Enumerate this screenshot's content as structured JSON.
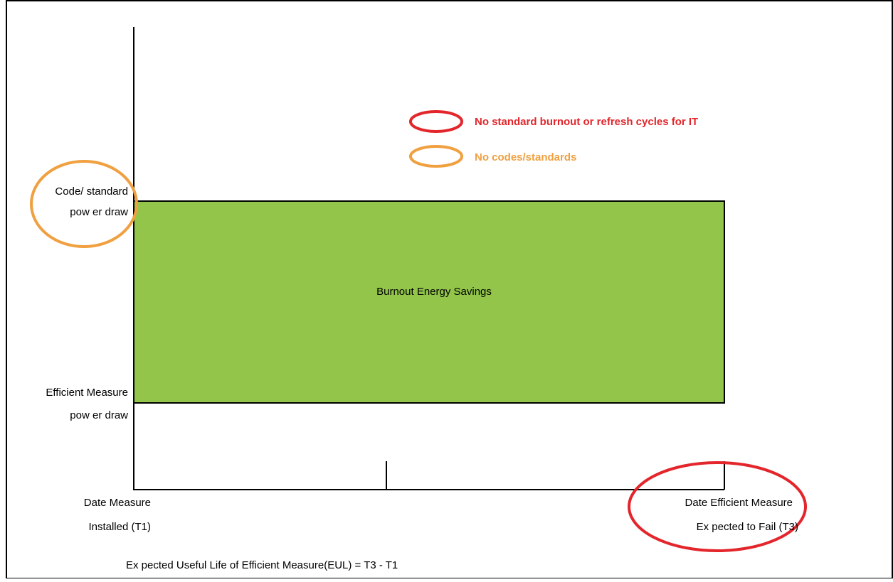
{
  "legend": [
    {
      "label": "No standard burnout or refresh cycles for IT"
    },
    {
      "label": "No codes/standards"
    }
  ],
  "y_labels": {
    "top": [
      "Code/ standard",
      "pow er draw"
    ],
    "bottom": [
      "Efficient Measure",
      "pow er draw"
    ]
  },
  "box_label": "Burnout Energy Savings",
  "x_labels": {
    "start": [
      "Date Measure",
      "Installed (T1)"
    ],
    "end": [
      "Date Efficient Measure",
      "Ex pected to Fail (T3)"
    ]
  },
  "footer": "Ex pected Useful Life of Efficient Measure(EUL) = T3 - T1"
}
